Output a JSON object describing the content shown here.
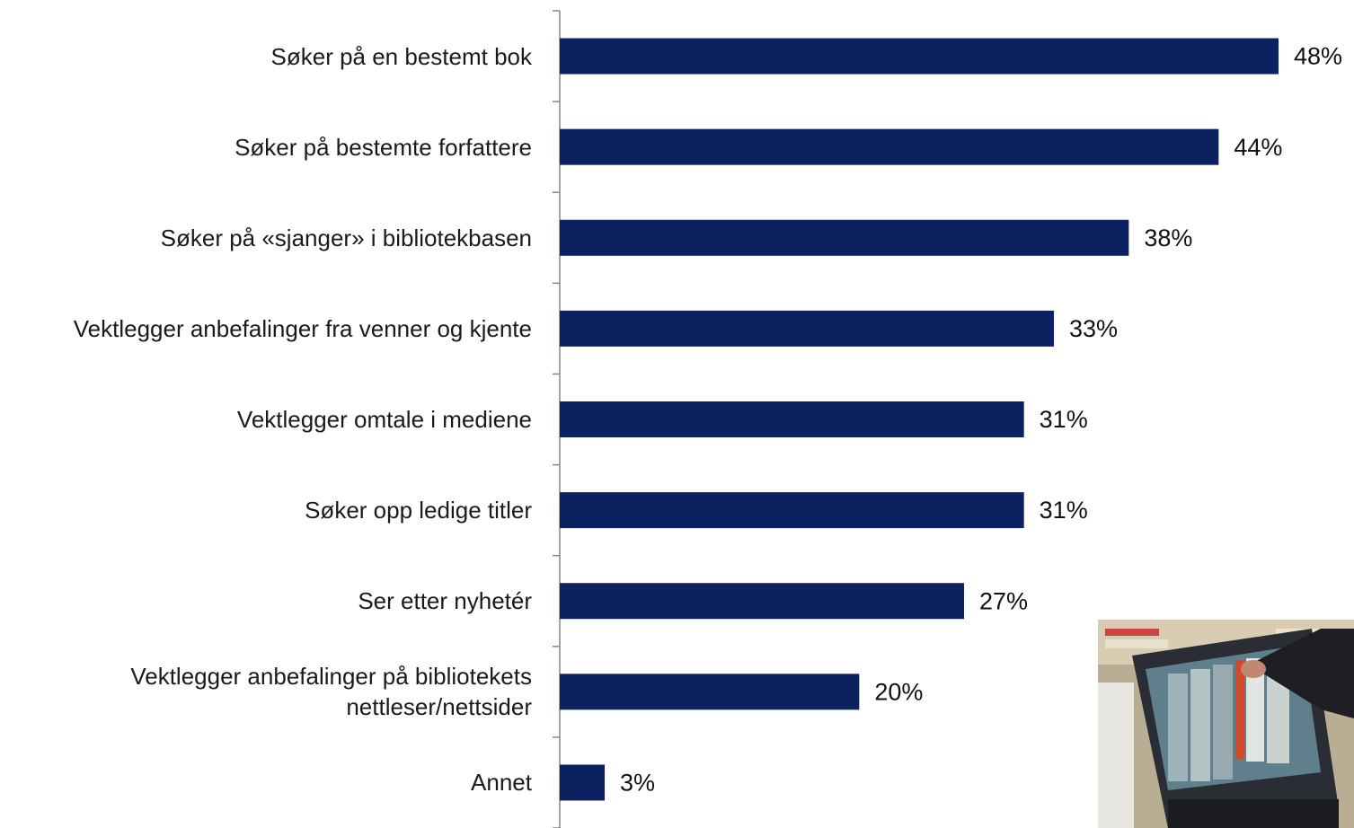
{
  "chart_data": {
    "type": "bar",
    "orientation": "horizontal",
    "categories": [
      "Søker på en bestemt bok",
      "Søker på bestemte forfattere",
      "Søker på «sjanger» i bibliotekbasen",
      "Vektlegger anbefalinger fra venner og kjente",
      "Vektlegger omtale i mediene",
      "Søker opp ledige titler",
      "Ser etter nyhetér",
      "Vektlegger anbefalinger på bibliotekets\nnettleser/nettsider",
      "Annet"
    ],
    "values": [
      48,
      44,
      38,
      33,
      31,
      31,
      27,
      20,
      3
    ],
    "value_labels": [
      "48%",
      "44%",
      "38%",
      "33%",
      "31%",
      "31%",
      "27%",
      "20%",
      "3%"
    ],
    "color": "#0c215f"
  }
}
